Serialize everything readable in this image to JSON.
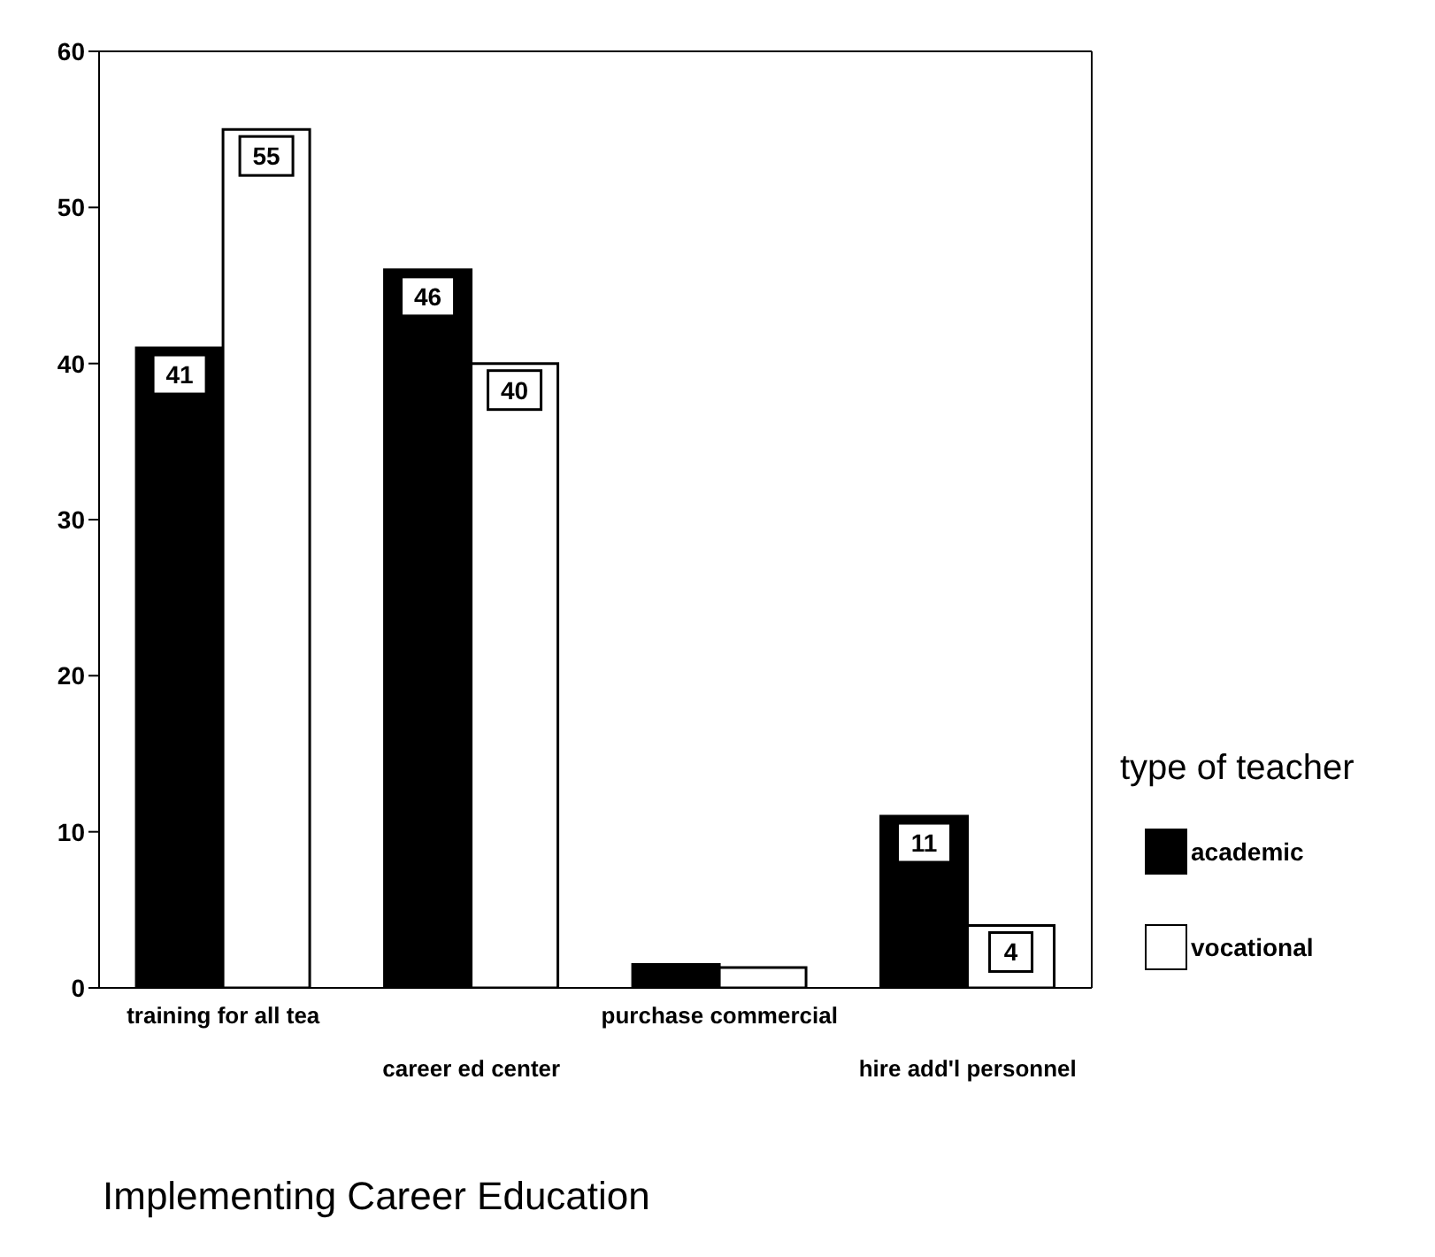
{
  "chart_data": {
    "type": "bar",
    "title": "Implementing Career Education",
    "categories": [
      "training for all tea",
      "career ed center",
      "purchase commercial",
      "hire add'l personnel"
    ],
    "series": [
      {
        "name": "academic",
        "color": "#000000",
        "values": [
          41,
          46,
          1.5,
          11
        ],
        "value_labels": [
          "41",
          "46",
          null,
          "11"
        ]
      },
      {
        "name": "vocational",
        "color": "#ffffff",
        "values": [
          55,
          40,
          1.3,
          4
        ],
        "value_labels": [
          "55",
          "40",
          null,
          "4"
        ]
      }
    ],
    "legend_title": "type of teacher",
    "legend": "right",
    "ylim": [
      0,
      60
    ],
    "yticks": [
      0,
      10,
      20,
      30,
      40,
      50,
      60
    ],
    "grid": false
  }
}
